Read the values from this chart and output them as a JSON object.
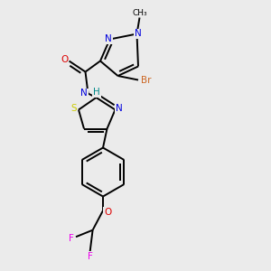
{
  "bg_color": "#ebebeb",
  "atom_colors": {
    "C": "#000000",
    "N": "#0000dd",
    "O": "#dd0000",
    "S": "#cccc00",
    "Br": "#cc6622",
    "F": "#ee00ee",
    "H": "#008888"
  }
}
